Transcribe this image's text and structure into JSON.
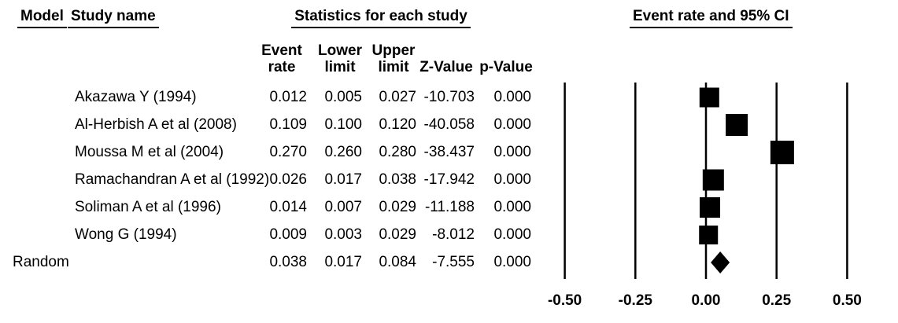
{
  "page": {
    "background": "#ffffff",
    "text_color": "#000000"
  },
  "headers": {
    "model": "Model",
    "study_name": "Study name",
    "statistics": "Statistics for each study",
    "ci": "Event rate and 95% CI"
  },
  "stat_columns": {
    "event_rate": "Event\nrate",
    "lower_limit": "Lower\nlimit",
    "upper_limit": "Upper\nlimit",
    "z_value": "Z-Value",
    "p_value": "p-Value"
  },
  "colors": {
    "marker": "#000000",
    "axis_line": "#000000",
    "background": "#ffffff"
  },
  "chart_data": {
    "type": "forest",
    "title": "Event rate and 95% CI",
    "x_axis": {
      "range": [
        -0.5,
        0.5
      ],
      "ticks": [
        -0.5,
        -0.25,
        0,
        0.25,
        0.5
      ],
      "tick_labels": [
        "-0.50",
        "-0.25",
        "0.00",
        "0.25",
        "0.50"
      ]
    },
    "grid": "vertical-lines-at-ticks",
    "legend": "none",
    "rows": [
      {
        "model": "",
        "name": "Akazawa Y (1994)",
        "event_rate": "0.012",
        "lower_limit": "0.005",
        "upper_limit": "0.027",
        "z_value": "-10.703",
        "p_value": "0.000",
        "marker": "square",
        "marker_size": 25
      },
      {
        "model": "",
        "name": "Al-Herbish A et al (2008)",
        "event_rate": "0.109",
        "lower_limit": "0.100",
        "upper_limit": "0.120",
        "z_value": "-40.058",
        "p_value": "0.000",
        "marker": "square",
        "marker_size": 28
      },
      {
        "model": "",
        "name": "Moussa M et al (2004)",
        "event_rate": "0.270",
        "lower_limit": "0.260",
        "upper_limit": "0.280",
        "z_value": "-38.437",
        "p_value": "0.000",
        "marker": "square",
        "marker_size": 30
      },
      {
        "model": "",
        "name": "Ramachandran A et al (1992)",
        "event_rate": "0.026",
        "lower_limit": "0.017",
        "upper_limit": "0.038",
        "z_value": "-17.942",
        "p_value": "0.000",
        "marker": "square",
        "marker_size": 27
      },
      {
        "model": "",
        "name": "Soliman A et al (1996)",
        "event_rate": "0.014",
        "lower_limit": "0.007",
        "upper_limit": "0.029",
        "z_value": "-11.188",
        "p_value": "0.000",
        "marker": "square",
        "marker_size": 26
      },
      {
        "model": "",
        "name": "Wong G (1994)",
        "event_rate": "0.009",
        "lower_limit": "0.003",
        "upper_limit": "0.029",
        "z_value": "-8.012",
        "p_value": "0.000",
        "marker": "square",
        "marker_size": 24
      },
      {
        "model": "Random",
        "name": "",
        "event_rate": "0.038",
        "lower_limit": "0.017",
        "upper_limit": "0.084",
        "z_value": "-7.555",
        "p_value": "0.000",
        "marker": "diamond",
        "marker_size": 27
      }
    ]
  }
}
